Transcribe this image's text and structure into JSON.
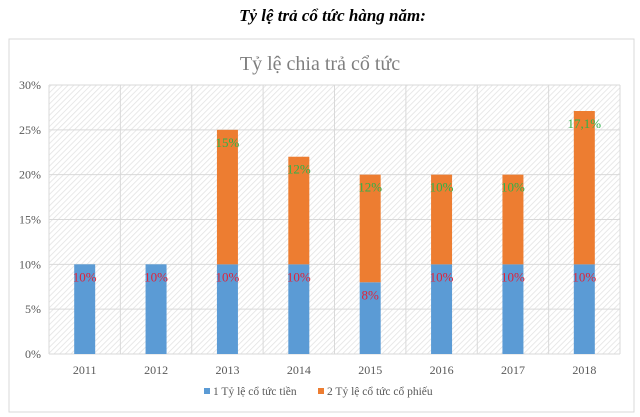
{
  "heading": "Tỷ lệ trả cổ tức hàng năm:",
  "chart_data": {
    "type": "bar",
    "stacked": true,
    "title": "Tỷ lệ chia trả cổ tức",
    "categories": [
      "2011",
      "2012",
      "2013",
      "2014",
      "2015",
      "2016",
      "2017",
      "2018"
    ],
    "series": [
      {
        "name": "1 Tỷ lệ cổ tức tiền",
        "color": "#5b9bd5",
        "label_color": "#e0233a",
        "values": [
          10,
          10,
          10,
          10,
          8,
          10,
          10,
          10
        ],
        "labels": [
          "10%",
          "10%",
          "10%",
          "10%",
          "8%",
          "10%",
          "10%",
          "10%"
        ]
      },
      {
        "name": "2 Tỷ lệ cổ tức cổ phiếu",
        "color": "#ed7d31",
        "label_color": "#2fb34a",
        "values": [
          0,
          0,
          15,
          12,
          12,
          10,
          10,
          17.1
        ],
        "labels": [
          "",
          "",
          "15%",
          "12%",
          "12%",
          "10%",
          "10%",
          "17,1%"
        ]
      }
    ],
    "yticks": [
      "0%",
      "5%",
      "10%",
      "15%",
      "20%",
      "25%",
      "30%"
    ],
    "ylim": [
      0,
      30
    ],
    "grid": true,
    "legend": "bottom"
  }
}
